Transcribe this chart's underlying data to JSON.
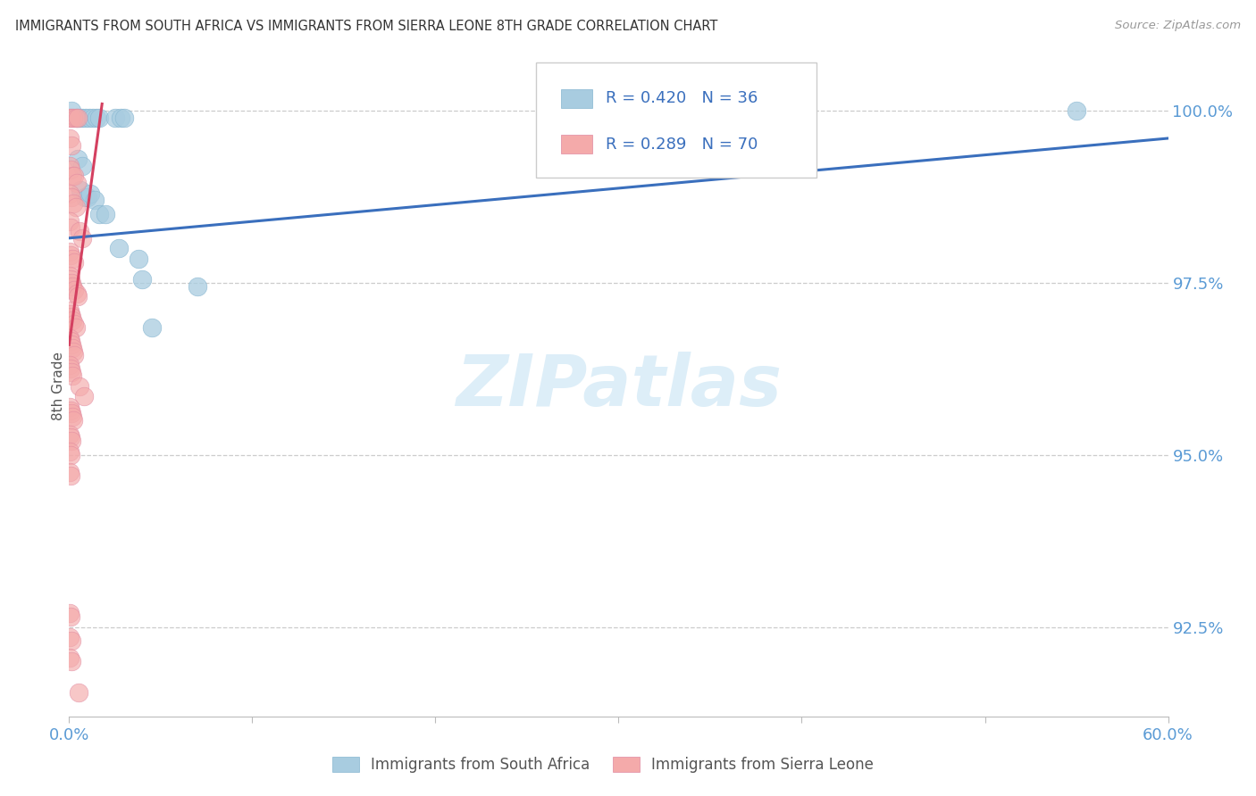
{
  "title": "IMMIGRANTS FROM SOUTH AFRICA VS IMMIGRANTS FROM SIERRA LEONE 8TH GRADE CORRELATION CHART",
  "source": "Source: ZipAtlas.com",
  "ylabel": "8th Grade",
  "y_labels": [
    "100.0%",
    "97.5%",
    "95.0%",
    "92.5%"
  ],
  "y_values": [
    100.0,
    97.5,
    95.0,
    92.5
  ],
  "x_min": 0.0,
  "x_max": 60.0,
  "y_min": 91.2,
  "y_max": 100.8,
  "legend_blue_r": "R = 0.420",
  "legend_blue_n": "N = 36",
  "legend_pink_r": "R = 0.289",
  "legend_pink_n": "N = 70",
  "blue_dot_color": "#a8cce0",
  "pink_dot_color": "#f4aaaa",
  "blue_line_color": "#3a6fbd",
  "pink_line_color": "#d44060",
  "watermark_text": "ZIPatlas",
  "watermark_color": "#ddeef8",
  "title_color": "#333333",
  "axis_tick_color": "#5b9bd5",
  "grid_color": "#cccccc",
  "legend_text_color": "#3a6fbd",
  "legend_border_color": "#cccccc",
  "blue_line_x0": 0.0,
  "blue_line_y0": 98.15,
  "blue_line_x1": 60.0,
  "blue_line_y1": 99.6,
  "pink_line_x0": 0.0,
  "pink_line_y0": 96.6,
  "pink_line_x1": 1.8,
  "pink_line_y1": 100.1,
  "blue_dots": [
    [
      0.15,
      100.0
    ],
    [
      0.4,
      99.9
    ],
    [
      0.55,
      99.9
    ],
    [
      0.7,
      99.9
    ],
    [
      0.9,
      99.9
    ],
    [
      1.1,
      99.9
    ],
    [
      1.3,
      99.9
    ],
    [
      1.5,
      99.9
    ],
    [
      1.65,
      99.9
    ],
    [
      2.5,
      99.9
    ],
    [
      2.8,
      99.9
    ],
    [
      3.0,
      99.9
    ],
    [
      0.45,
      99.3
    ],
    [
      0.7,
      99.2
    ],
    [
      0.6,
      98.85
    ],
    [
      0.85,
      98.75
    ],
    [
      1.0,
      98.75
    ],
    [
      1.15,
      98.8
    ],
    [
      1.4,
      98.7
    ],
    [
      1.65,
      98.5
    ],
    [
      2.0,
      98.5
    ],
    [
      2.7,
      98.0
    ],
    [
      3.8,
      97.85
    ],
    [
      4.0,
      97.55
    ],
    [
      7.0,
      97.45
    ],
    [
      4.5,
      96.85
    ],
    [
      55.0,
      100.0
    ]
  ],
  "pink_dots": [
    [
      0.05,
      99.9
    ],
    [
      0.15,
      99.9
    ],
    [
      0.25,
      99.9
    ],
    [
      0.35,
      99.9
    ],
    [
      0.45,
      99.9
    ],
    [
      0.05,
      99.6
    ],
    [
      0.15,
      99.5
    ],
    [
      0.05,
      99.2
    ],
    [
      0.1,
      99.15
    ],
    [
      0.2,
      99.05
    ],
    [
      0.3,
      99.05
    ],
    [
      0.4,
      98.95
    ],
    [
      0.05,
      98.8
    ],
    [
      0.15,
      98.75
    ],
    [
      0.25,
      98.65
    ],
    [
      0.35,
      98.6
    ],
    [
      0.05,
      98.4
    ],
    [
      0.1,
      98.3
    ],
    [
      0.55,
      98.25
    ],
    [
      0.7,
      98.15
    ],
    [
      0.05,
      97.95
    ],
    [
      0.1,
      97.9
    ],
    [
      0.2,
      97.85
    ],
    [
      0.3,
      97.8
    ],
    [
      0.05,
      97.6
    ],
    [
      0.1,
      97.55
    ],
    [
      0.15,
      97.5
    ],
    [
      0.2,
      97.45
    ],
    [
      0.3,
      97.4
    ],
    [
      0.4,
      97.35
    ],
    [
      0.45,
      97.3
    ],
    [
      0.05,
      97.1
    ],
    [
      0.1,
      97.05
    ],
    [
      0.15,
      97.0
    ],
    [
      0.2,
      96.95
    ],
    [
      0.3,
      96.9
    ],
    [
      0.35,
      96.85
    ],
    [
      0.05,
      96.7
    ],
    [
      0.1,
      96.65
    ],
    [
      0.15,
      96.6
    ],
    [
      0.2,
      96.55
    ],
    [
      0.25,
      96.5
    ],
    [
      0.3,
      96.45
    ],
    [
      0.05,
      96.3
    ],
    [
      0.1,
      96.25
    ],
    [
      0.15,
      96.2
    ],
    [
      0.2,
      96.15
    ],
    [
      0.55,
      96.0
    ],
    [
      0.8,
      95.85
    ],
    [
      0.05,
      95.7
    ],
    [
      0.1,
      95.65
    ],
    [
      0.15,
      95.6
    ],
    [
      0.2,
      95.55
    ],
    [
      0.25,
      95.5
    ],
    [
      0.05,
      95.3
    ],
    [
      0.1,
      95.25
    ],
    [
      0.15,
      95.2
    ],
    [
      0.05,
      95.05
    ],
    [
      0.1,
      95.0
    ],
    [
      0.05,
      94.75
    ],
    [
      0.1,
      94.7
    ],
    [
      0.05,
      92.7
    ],
    [
      0.1,
      92.65
    ],
    [
      0.05,
      92.35
    ],
    [
      0.15,
      92.3
    ],
    [
      0.05,
      92.05
    ],
    [
      0.15,
      92.0
    ],
    [
      0.5,
      91.55
    ]
  ],
  "bottom_legend_blue": "Immigrants from South Africa",
  "bottom_legend_pink": "Immigrants from Sierra Leone"
}
